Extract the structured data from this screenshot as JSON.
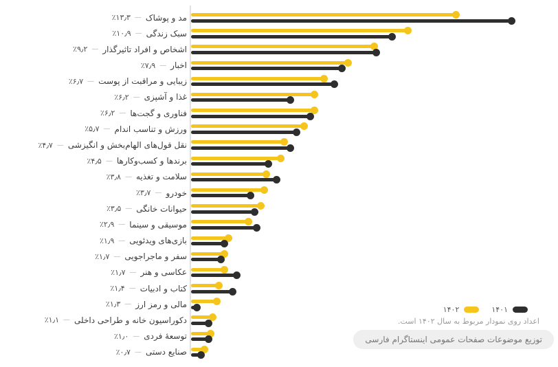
{
  "chart_data": {
    "type": "bar",
    "variant": "horizontal-lollipop",
    "direction": "rtl",
    "categories": [
      "مد و پوشاک",
      "سبک زندگی",
      "اشخاص و افراد تاثیرگذار",
      "اخبار",
      "زیبایی و مراقبت از پوست",
      "غذا و آشپزی",
      "فناوری و گجت‌ها",
      "ورزش و تناسب اندام",
      "نقل قول‌های الهام‌بخش و انگیزشی",
      "برندها و کسب‌وکارها",
      "سلامت و تغذیه",
      "خودرو",
      "حیوانات خانگی",
      "موسیقی و سینما",
      "بازی‌های ویدئویی",
      "سفر و ماجراجویی",
      "عکاسی و هنر",
      "کتاب و ادبیات",
      "مالی و رمز ارز",
      "دکوراسیون خانه و طراحی داخلی",
      "توسعهٔ فردی",
      "صنایع دستی"
    ],
    "value_labels": [
      "٪۱۳٫۳",
      "٪۱۰٫۹",
      "٪۹٫۲",
      "٪۷٫۹",
      "٪۶٫۷",
      "٪۶٫۲",
      "٪۶٫۲",
      "٪۵٫۷",
      "٪۴٫۷",
      "٪۴٫۵",
      "٪۳٫۸",
      "٪۳٫۷",
      "٪۳٫۵",
      "٪۲٫۹",
      "٪۱٫۹",
      "٪۱٫۷",
      "٪۱٫۷",
      "٪۱٫۴",
      "٪۱٫۳",
      "٪۱٫۱",
      "٪۱٫۰",
      "٪۰٫۷"
    ],
    "series": [
      {
        "name": "۱۴۰۲",
        "color": "#F5C51E",
        "values": [
          13.3,
          10.9,
          9.2,
          7.9,
          6.7,
          6.2,
          6.2,
          5.7,
          4.7,
          4.5,
          3.8,
          3.7,
          3.5,
          2.9,
          1.9,
          1.7,
          1.7,
          1.4,
          1.3,
          1.1,
          1.0,
          0.7
        ]
      },
      {
        "name": "۱۴۰۱",
        "color": "#2E2E2E",
        "values": [
          16.1,
          10.1,
          9.3,
          7.6,
          7.2,
          5.0,
          6.0,
          5.3,
          5.0,
          3.9,
          4.3,
          3.0,
          3.2,
          3.3,
          1.7,
          1.5,
          2.3,
          2.1,
          0.3,
          0.9,
          0.9,
          0.5
        ]
      }
    ],
    "xlim": [
      0,
      18
    ],
    "grid": false,
    "legend_position": "bottom-right",
    "title": "",
    "xlabel": "",
    "ylabel": ""
  },
  "legend": {
    "items": [
      {
        "label": "۱۴۰۱",
        "color": "#2E2E2E"
      },
      {
        "label": "۱۴۰۲",
        "color": "#F5C51E"
      }
    ]
  },
  "note": {
    "text": "اعداد روی نمودار مربوط به سال ۱۴۰۲ است."
  },
  "badge": {
    "text": "توزیع موضوعات صفحات عمومی اینستاگرام فارسی"
  },
  "colors": {
    "series_1402": "#F5C51E",
    "series_1401": "#2E2E2E",
    "axis": "#E1E1E1",
    "badge_bg": "#EFEFEF",
    "label_text": "#3C3C3C",
    "note_text": "#9A9A9A"
  }
}
